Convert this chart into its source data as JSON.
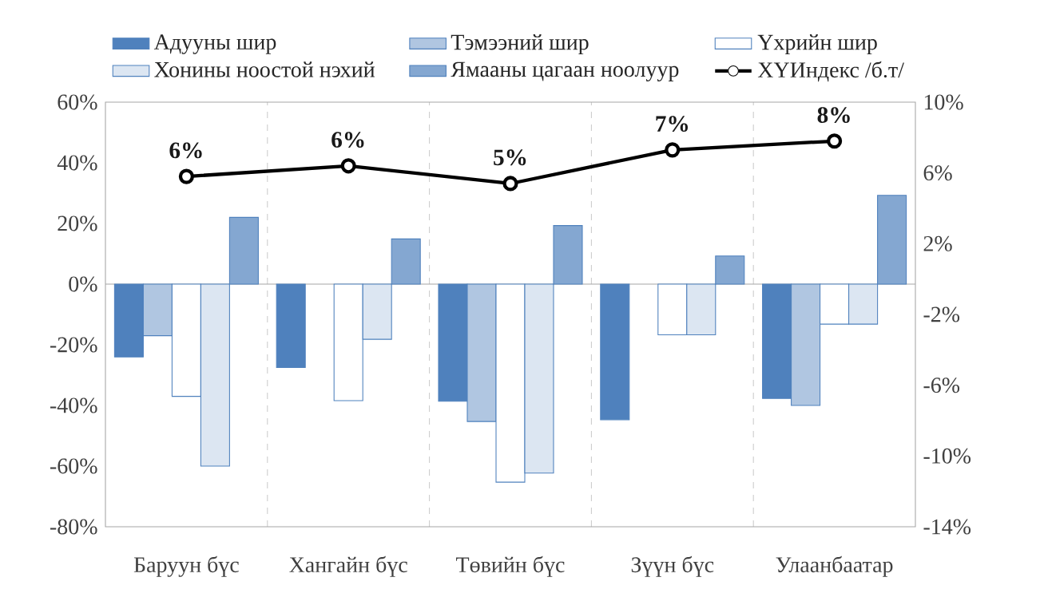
{
  "chart_data": {
    "type": "bar",
    "categories": [
      "Баруун бүс",
      "Хангайн бүс",
      "Төвийн бүс",
      "Зүүн бүс",
      "Улаанбаатар"
    ],
    "series": [
      {
        "name": "Адууны шир",
        "color": "#4f81bd",
        "values": [
          -24,
          -27.5,
          -38.6,
          -44.7,
          -37.7
        ]
      },
      {
        "name": "Тэмээний шир",
        "color": "#4f81bd",
        "values": [
          -17,
          null,
          -45.3,
          null,
          -40
        ]
      },
      {
        "name": "Үхрийн шир",
        "color": "#4f81bd",
        "values": [
          -37,
          -38.4,
          -65.3,
          -16.7,
          -13.2
        ]
      },
      {
        "name": "Хонины ноостой нэхий",
        "color": "#4f81bd",
        "values": [
          -60,
          -18.2,
          -62.3,
          -16.7,
          -13.2
        ]
      },
      {
        "name": "Ямааны цагаан ноолуур",
        "color": "#4f81bd",
        "values": [
          22,
          14.9,
          19.3,
          9.3,
          29.3
        ]
      },
      {
        "name": "ХҮИндекс /б.т/",
        "type": "line",
        "axis": "y2",
        "color": "#000000",
        "marker": "circle",
        "values": [
          5.8,
          6.4,
          5.4,
          7.3,
          7.8
        ],
        "value_labels": [
          "6%",
          "6%",
          "5%",
          "7%",
          "8%"
        ]
      }
    ],
    "ylim": [
      -80,
      60
    ],
    "yticks": [
      {
        "value": -80,
        "label": "-80%"
      },
      {
        "value": -60,
        "label": "-60%"
      },
      {
        "value": -40,
        "label": "-40%"
      },
      {
        "value": -20,
        "label": "-20%"
      },
      {
        "value": 0,
        "label": "0%"
      },
      {
        "value": 20,
        "label": "20%"
      },
      {
        "value": 40,
        "label": "40%"
      },
      {
        "value": 60,
        "label": "60%"
      }
    ],
    "y2lim": [
      -14,
      10
    ],
    "y2ticks": [
      {
        "value": -14,
        "label": "-14%"
      },
      {
        "value": -10,
        "label": "-10%"
      },
      {
        "value": -6,
        "label": "-6%"
      },
      {
        "value": -2,
        "label": "-2%"
      },
      {
        "value": 2,
        "label": "2%"
      },
      {
        "value": 6,
        "label": "6%"
      },
      {
        "value": 10,
        "label": "10%"
      }
    ],
    "grid": "x",
    "legend": "top"
  }
}
